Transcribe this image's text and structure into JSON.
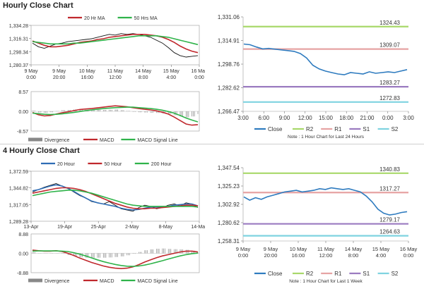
{
  "sections": {
    "hourly_title": "Hourly Close Chart",
    "four_hourly_title": "4 Hourly Close Chart"
  },
  "colors": {
    "price": "#111111",
    "ma_red": "#c0282d",
    "ma_green": "#2fb34a",
    "ma_blue": "#2f6db5",
    "close_line": "#2e7bbf",
    "r2": "#a8d86a",
    "r1": "#e6a3a3",
    "s1": "#9b7bc0",
    "s2": "#7fd3e0",
    "hist": "#888888"
  },
  "chart_data": [
    {
      "id": "hourly_price",
      "type": "line",
      "title": "Hourly Close Chart",
      "legend": [
        "20 Hr MA",
        "50 Hrs MA"
      ],
      "y_ticks": [
        "1,334.28",
        "1,316.31",
        "1,298.34",
        "1,280.37"
      ],
      "ylim": [
        1280.37,
        1334.28
      ],
      "x_ticks": [
        [
          "9 May",
          "0:00"
        ],
        [
          "9 May",
          "20:00"
        ],
        [
          "10 May",
          "16:00"
        ],
        [
          "11 May",
          "12:00"
        ],
        [
          "14 May",
          "8:00"
        ],
        [
          "15 May",
          "4:00"
        ],
        [
          "16 May",
          "0:00"
        ]
      ],
      "series": [
        {
          "name": "Close",
          "values": [
            1310,
            1305,
            1303,
            1306,
            1309,
            1310,
            1312,
            1313,
            1314,
            1315,
            1316,
            1318,
            1320,
            1322,
            1321,
            1323,
            1322,
            1323,
            1322,
            1320,
            1318,
            1314,
            1310,
            1304,
            1297,
            1293,
            1291,
            1292,
            1293
          ]
        },
        {
          "name": "20 Hr MA",
          "values": [
            1313,
            1310,
            1307,
            1305,
            1305,
            1306,
            1307,
            1309,
            1311,
            1312,
            1313,
            1315,
            1316,
            1318,
            1319,
            1320,
            1321,
            1322,
            1322,
            1322,
            1321,
            1320,
            1318,
            1315,
            1311,
            1306,
            1302,
            1299,
            1297
          ]
        },
        {
          "name": "50 Hrs MA",
          "values": [
            1312,
            1311,
            1310,
            1309,
            1309,
            1309,
            1309,
            1310,
            1310,
            1311,
            1312,
            1313,
            1314,
            1315,
            1316,
            1317,
            1318,
            1319,
            1320,
            1320,
            1320,
            1320,
            1319,
            1318,
            1316,
            1314,
            1312,
            1310,
            1308
          ]
        }
      ]
    },
    {
      "id": "hourly_macd",
      "type": "line",
      "legend": [
        "Divergence",
        "MACD",
        "MACD Signal Line"
      ],
      "y_ticks": [
        "8.57",
        "0.00",
        "-8.57"
      ],
      "ylim": [
        -8.57,
        8.57
      ],
      "series": [
        {
          "name": "MACD",
          "values": [
            -0.5,
            -1.5,
            -2.0,
            -1.8,
            -1.2,
            -0.6,
            -0.2,
            0.3,
            0.8,
            1.0,
            1.2,
            1.5,
            1.8,
            2.1,
            2.4,
            2.2,
            2.0,
            1.6,
            1.2,
            0.9,
            0.6,
            0.2,
            -0.4,
            -1.2,
            -2.5,
            -4.0,
            -5.5,
            -6.0,
            -5.8
          ]
        },
        {
          "name": "MACD Signal Line",
          "values": [
            -0.8,
            -1.0,
            -1.3,
            -1.4,
            -1.3,
            -1.1,
            -0.8,
            -0.5,
            -0.1,
            0.3,
            0.6,
            0.9,
            1.2,
            1.4,
            1.6,
            1.7,
            1.8,
            1.8,
            1.6,
            1.4,
            1.2,
            0.9,
            0.5,
            -0.1,
            -0.8,
            -1.8,
            -2.9,
            -3.8,
            -4.6
          ]
        },
        {
          "name": "Divergence",
          "values": [
            0.3,
            -0.5,
            -0.7,
            -0.4,
            0.1,
            0.5,
            0.6,
            0.8,
            0.9,
            0.7,
            0.6,
            0.6,
            0.6,
            0.7,
            0.8,
            0.5,
            0.2,
            -0.2,
            -0.4,
            -0.5,
            -0.6,
            -0.7,
            -0.9,
            -1.1,
            -1.7,
            -2.2,
            -2.6,
            -2.2,
            -1.2
          ]
        }
      ]
    },
    {
      "id": "hourly_levels",
      "type": "line",
      "note": "Note : 1 Hour Chart for Last 24 Hours",
      "y_ticks": [
        "1,331.06",
        "1,314.91",
        "1,298.76",
        "1,282.62",
        "1,266.47"
      ],
      "ylim": [
        1266.47,
        1331.06
      ],
      "x_ticks": [
        "3:00",
        "6:00",
        "9:00",
        "12:00",
        "15:00",
        "18:00",
        "21:00",
        "0:00",
        "3:00"
      ],
      "legend": [
        "Close",
        "R2",
        "R1",
        "S1",
        "S2"
      ],
      "levels": [
        {
          "name": "R2",
          "value": 1324.43,
          "label": "1324.43"
        },
        {
          "name": "R1",
          "value": 1309.07,
          "label": "1309.07"
        },
        {
          "name": "S1",
          "value": 1283.27,
          "label": "1283.27"
        },
        {
          "name": "S2",
          "value": 1272.83,
          "label": "1272.83"
        }
      ],
      "series": [
        {
          "name": "Close",
          "values": [
            1312.5,
            1312.0,
            1310.5,
            1309.2,
            1309.5,
            1309.0,
            1308.5,
            1308.0,
            1307.5,
            1306.0,
            1303.0,
            1298.0,
            1295.5,
            1294.0,
            1293.0,
            1292.0,
            1291.5,
            1293.0,
            1292.5,
            1292.0,
            1293.5,
            1292.5,
            1293.0,
            1293.5,
            1293.0,
            1294.0,
            1295.0
          ]
        }
      ]
    },
    {
      "id": "four_hourly_price",
      "type": "line",
      "title": "4 Hourly Close Chart",
      "legend": [
        "20 Hour",
        "50 Hour",
        "200 Hour"
      ],
      "y_ticks": [
        "1,372.59",
        "1,344.82",
        "1,317.05",
        "1,289.28"
      ],
      "ylim": [
        1289.28,
        1372.59
      ],
      "x_ticks": [
        "13-Apr",
        "19-Apr",
        "25-Apr",
        "2-May",
        "8-May",
        "14-May"
      ],
      "series": [
        {
          "name": "Close",
          "values": [
            1338,
            1342,
            1346,
            1349,
            1352,
            1348,
            1344,
            1338,
            1332,
            1328,
            1322,
            1320,
            1318,
            1322,
            1316,
            1310,
            1308,
            1306,
            1312,
            1316,
            1314,
            1310,
            1312,
            1316,
            1318,
            1315,
            1320,
            1318,
            1312
          ]
        },
        {
          "name": "20 Hour",
          "values": [
            1340,
            1342,
            1345,
            1348,
            1350,
            1348,
            1344,
            1339,
            1333,
            1328,
            1323,
            1320,
            1318,
            1316,
            1314,
            1311,
            1309,
            1308,
            1309,
            1311,
            1313,
            1313,
            1313,
            1314,
            1316,
            1317,
            1318,
            1318,
            1315
          ]
        },
        {
          "name": "50 Hour",
          "values": [
            1336,
            1338,
            1340,
            1342,
            1344,
            1345,
            1345,
            1344,
            1342,
            1339,
            1335,
            1331,
            1327,
            1323,
            1319,
            1316,
            1313,
            1311,
            1310,
            1310,
            1311,
            1311,
            1312,
            1313,
            1314,
            1315,
            1316,
            1316,
            1315
          ]
        },
        {
          "name": "200 Hour",
          "values": [
            1332,
            1334,
            1336,
            1338,
            1339,
            1340,
            1341,
            1341,
            1340,
            1338,
            1336,
            1333,
            1330,
            1327,
            1324,
            1321,
            1318,
            1316,
            1315,
            1314,
            1314,
            1314,
            1314,
            1314,
            1314,
            1314,
            1314,
            1314,
            1313
          ]
        }
      ]
    },
    {
      "id": "four_hourly_macd",
      "type": "line",
      "legend": [
        "Divergence",
        "MACD",
        "MACD Signal Line"
      ],
      "y_ticks": [
        "8.88",
        "0.00",
        "-8.88"
      ],
      "ylim": [
        -8.88,
        8.88
      ],
      "series": [
        {
          "name": "MACD",
          "values": [
            1.5,
            1.2,
            1.0,
            1.0,
            1.2,
            0.8,
            0.0,
            -1.0,
            -2.2,
            -3.2,
            -4.2,
            -5.0,
            -5.8,
            -6.4,
            -6.8,
            -7.0,
            -6.8,
            -6.2,
            -5.2,
            -4.0,
            -3.0,
            -2.0,
            -1.2,
            -0.6,
            0.0,
            0.6,
            1.0,
            1.0,
            0.6
          ]
        },
        {
          "name": "MACD Signal Line",
          "values": [
            1.0,
            1.1,
            1.1,
            1.1,
            1.1,
            1.0,
            0.8,
            0.3,
            -0.4,
            -1.2,
            -2.1,
            -3.0,
            -3.8,
            -4.5,
            -5.1,
            -5.6,
            -5.9,
            -6.0,
            -5.8,
            -5.4,
            -4.8,
            -4.1,
            -3.4,
            -2.6,
            -1.9,
            -1.2,
            -0.6,
            -0.2,
            0.1
          ]
        },
        {
          "name": "Divergence",
          "values": [
            0.5,
            0.1,
            -0.1,
            -0.1,
            0.1,
            -0.2,
            -0.8,
            -1.3,
            -1.8,
            -2.0,
            -2.1,
            -2.0,
            -2.0,
            -1.9,
            -1.7,
            -1.4,
            -0.9,
            -0.2,
            0.6,
            1.4,
            1.8,
            2.1,
            2.2,
            2.0,
            1.9,
            1.8,
            1.6,
            1.2,
            0.5
          ]
        }
      ]
    },
    {
      "id": "four_hourly_levels",
      "type": "line",
      "note": "Note : 1 Hour Chart for Last 1 Week",
      "y_ticks": [
        "1,347.54",
        "1,325.23",
        "1,302.92",
        "1,280.62",
        "1,258.31"
      ],
      "ylim": [
        1258.31,
        1347.54
      ],
      "x_ticks": [
        [
          "9 May",
          "0:00"
        ],
        [
          "9 May",
          "20:00"
        ],
        [
          "10 May",
          "16:00"
        ],
        [
          "11 May",
          "12:00"
        ],
        [
          "14 May",
          "8:00"
        ],
        [
          "15 May",
          "4:00"
        ],
        [
          "16 May",
          "0:00"
        ]
      ],
      "legend": [
        "Close",
        "R2",
        "R1",
        "S1",
        "S2"
      ],
      "levels": [
        {
          "name": "R2",
          "value": 1340.83,
          "label": "1340.83"
        },
        {
          "name": "R1",
          "value": 1317.27,
          "label": "1317.27"
        },
        {
          "name": "S1",
          "value": 1279.17,
          "label": "1279.17"
        },
        {
          "name": "S2",
          "value": 1264.63,
          "label": "1264.63"
        }
      ],
      "series": [
        {
          "name": "Close",
          "values": [
            1312,
            1308,
            1311,
            1309,
            1312,
            1314,
            1316,
            1318,
            1319,
            1320,
            1318,
            1319,
            1320,
            1322,
            1321,
            1323,
            1322,
            1321,
            1322,
            1320,
            1318,
            1313,
            1306,
            1297,
            1292,
            1290,
            1291,
            1293,
            1294
          ]
        }
      ]
    }
  ]
}
